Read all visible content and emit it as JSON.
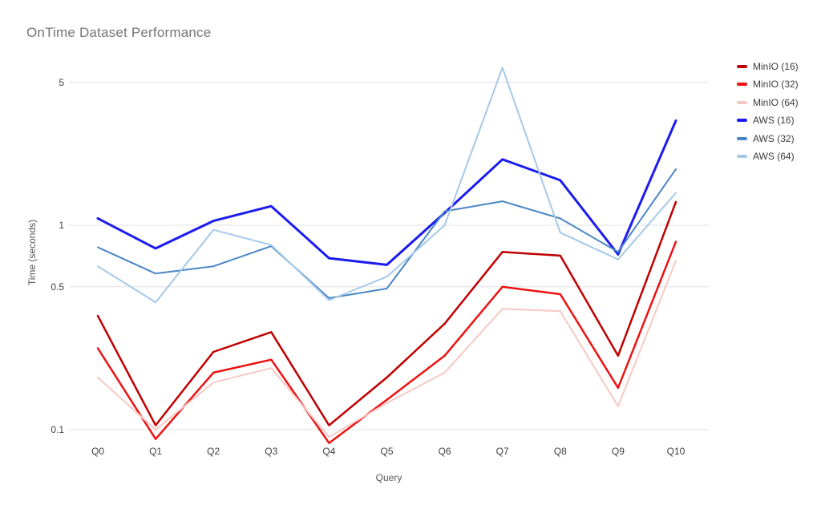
{
  "chart": {
    "title": "OnTime Dataset Performance",
    "y_axis_title": "Time (seconds)",
    "x_axis_title": "Query"
  },
  "chart_data": {
    "type": "line",
    "title": "OnTime Dataset Performance",
    "xlabel": "Query",
    "ylabel": "Time (seconds)",
    "y_scale": "log",
    "ylim": [
      0.08,
      7
    ],
    "grid": "horizontal-only",
    "legend_position": "right",
    "x_categories": [
      "Q0",
      "Q1",
      "Q2",
      "Q3",
      "Q4",
      "Q5",
      "Q6",
      "Q7",
      "Q8",
      "Q9",
      "Q10"
    ],
    "y_ticks": [
      5,
      1,
      0.5,
      0.1
    ],
    "y_tick_labels": [
      "5",
      "1",
      "0.5",
      "0.1"
    ],
    "series": [
      {
        "name": "MinIO (16)",
        "color": "#c00000",
        "values": [
          0.36,
          0.105,
          0.24,
          0.3,
          0.105,
          0.18,
          0.33,
          0.74,
          0.71,
          0.23,
          1.3
        ]
      },
      {
        "name": "MinIO (32)",
        "color": "#ee1111",
        "values": [
          0.25,
          0.09,
          0.19,
          0.22,
          0.086,
          0.14,
          0.23,
          0.5,
          0.46,
          0.16,
          0.83
        ]
      },
      {
        "name": "MinIO (64)",
        "color": "#f6c9c5",
        "values": [
          0.18,
          0.1,
          0.17,
          0.2,
          0.092,
          0.135,
          0.19,
          0.39,
          0.38,
          0.13,
          0.67
        ]
      },
      {
        "name": "AWS (16)",
        "color": "#1b1bef",
        "values": [
          1.08,
          0.77,
          1.05,
          1.24,
          0.69,
          0.64,
          1.15,
          2.1,
          1.66,
          0.72,
          3.25
        ]
      },
      {
        "name": "AWS (32)",
        "color": "#4a86c6",
        "values": [
          0.78,
          0.58,
          0.63,
          0.79,
          0.44,
          0.49,
          1.17,
          1.31,
          1.08,
          0.74,
          1.88
        ]
      },
      {
        "name": "AWS (64)",
        "color": "#a6c9e8",
        "values": [
          0.63,
          0.42,
          0.95,
          0.8,
          0.43,
          0.56,
          1.0,
          5.9,
          0.92,
          0.68,
          1.44
        ]
      }
    ]
  }
}
